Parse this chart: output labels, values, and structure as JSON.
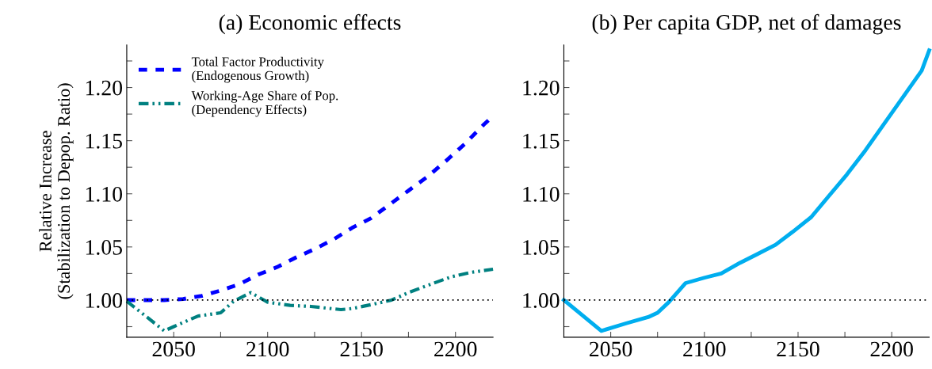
{
  "chart_data": [
    {
      "type": "line",
      "title": "(a) Economic effects",
      "ylabel": "Relative Increase\n(Stabilization to Depop. Ratio)",
      "xlim": [
        2025,
        2220
      ],
      "xticks": [
        2050,
        {
          "value": 2075,
          "label": null
        },
        2100,
        {
          "value": 2125,
          "label": null
        },
        2150,
        {
          "value": 2175,
          "label": null
        },
        2200
      ],
      "ylim": [
        0.965,
        1.24
      ],
      "yticks": [
        {
          "value": 0.975,
          "label": null
        },
        {
          "value": 1.0,
          "label": "1.00"
        },
        {
          "value": 1.025,
          "label": null
        },
        {
          "value": 1.05,
          "label": "1.05"
        },
        {
          "value": 1.075,
          "label": null
        },
        {
          "value": 1.1,
          "label": "1.10"
        },
        {
          "value": 1.125,
          "label": null
        },
        {
          "value": 1.15,
          "label": "1.15"
        },
        {
          "value": 1.175,
          "label": null
        },
        {
          "value": 1.2,
          "label": "1.20"
        },
        {
          "value": 1.225,
          "label": null
        }
      ],
      "legend": "top left",
      "grid": false,
      "ref_lines": [
        {
          "axis": "y",
          "value": 1.0,
          "color": "#000000",
          "line_style": "dotted"
        }
      ],
      "series": [
        {
          "name": "Total Factor Productivity\n(Endogenous Growth)",
          "color": "#0000ff",
          "line_style": "dashed",
          "x": [
            2025,
            2045,
            2055,
            2065,
            2075,
            2085,
            2095,
            2105,
            2115,
            2125,
            2135,
            2145,
            2155,
            2165,
            2175,
            2185,
            2195,
            2205,
            2215,
            2220
          ],
          "values": [
            1.0,
            1.0,
            1.001,
            1.004,
            1.009,
            1.015,
            1.024,
            1.031,
            1.04,
            1.048,
            1.057,
            1.068,
            1.077,
            1.09,
            1.103,
            1.116,
            1.131,
            1.147,
            1.165,
            1.173
          ]
        },
        {
          "name": "Working-Age Share of Pop.\n(Dependency Effects)",
          "color": "#008080",
          "line_style": "dashdot",
          "x": [
            2025,
            2045,
            2050,
            2063,
            2075,
            2082,
            2091,
            2100,
            2112,
            2123,
            2139,
            2145,
            2156,
            2166,
            2175,
            2187,
            2198,
            2208,
            2220
          ],
          "values": [
            0.999,
            0.971,
            0.975,
            0.985,
            0.988,
            0.999,
            1.007,
            0.998,
            0.995,
            0.994,
            0.991,
            0.992,
            0.996,
            1.0,
            1.007,
            1.015,
            1.022,
            1.026,
            1.029
          ]
        }
      ]
    },
    {
      "type": "line",
      "title": "(b) Per capita GDP, net of damages",
      "xlim": [
        2025,
        2220
      ],
      "xticks": [
        2050,
        {
          "value": 2075,
          "label": null
        },
        2100,
        {
          "value": 2125,
          "label": null
        },
        2150,
        {
          "value": 2175,
          "label": null
        },
        2200
      ],
      "ylim": [
        0.965,
        1.24
      ],
      "yticks": [
        {
          "value": 0.975,
          "label": null
        },
        {
          "value": 1.0,
          "label": "1.00"
        },
        {
          "value": 1.025,
          "label": null
        },
        {
          "value": 1.05,
          "label": "1.05"
        },
        {
          "value": 1.075,
          "label": null
        },
        {
          "value": 1.1,
          "label": "1.10"
        },
        {
          "value": 1.125,
          "label": null
        },
        {
          "value": 1.15,
          "label": "1.15"
        },
        {
          "value": 1.175,
          "label": null
        },
        {
          "value": 1.2,
          "label": "1.20"
        },
        {
          "value": 1.225,
          "label": null
        }
      ],
      "grid": false,
      "ref_lines": [
        {
          "axis": "y",
          "value": 1.0,
          "color": "#000000",
          "line_style": "dotted"
        }
      ],
      "series": [
        {
          "color": "#00aeef",
          "line_style": "solid",
          "x": [
            2025,
            2045,
            2058,
            2070,
            2075,
            2081,
            2090,
            2100,
            2109,
            2119,
            2128,
            2138,
            2147,
            2157,
            2166,
            2176,
            2186,
            2196,
            2206,
            2216,
            2220
          ],
          "values": [
            1.0,
            0.971,
            0.978,
            0.984,
            0.988,
            0.998,
            1.016,
            1.021,
            1.025,
            1.035,
            1.043,
            1.052,
            1.064,
            1.078,
            1.097,
            1.118,
            1.141,
            1.166,
            1.191,
            1.216,
            1.235
          ]
        }
      ]
    }
  ]
}
